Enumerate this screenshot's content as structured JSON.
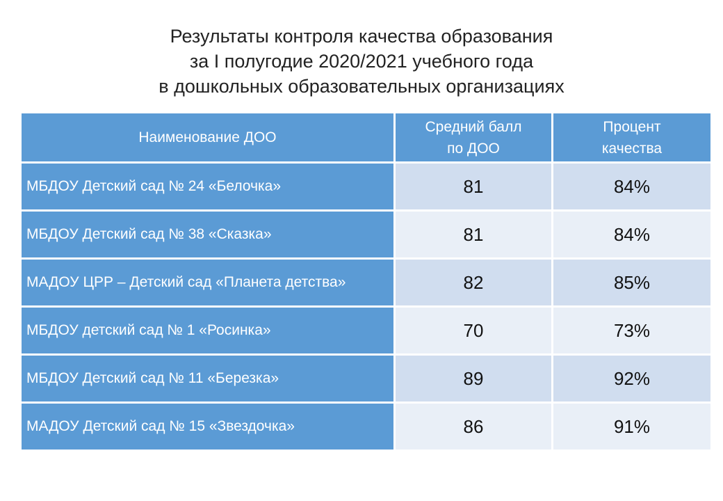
{
  "title": {
    "line1": "Результаты контроля качества образования",
    "line2": "за I полугодие 2020/2021 учебного года",
    "line3": "в дошкольных образовательных организациях"
  },
  "table": {
    "headers": {
      "name": "Наименование ДОО",
      "avg_line1": "Средний балл",
      "avg_line2": "по ДОО",
      "pct_line1": "Процент",
      "pct_line2": "качества"
    },
    "rows": [
      {
        "name": "МБДОУ Детский сад № 24 «Белочка»",
        "avg": "81",
        "pct": "84%"
      },
      {
        "name": "МБДОУ Детский сад № 38 «Сказка»",
        "avg": "81",
        "pct": "84%"
      },
      {
        "name": "МАДОУ ЦРР – Детский сад «Планета детства»",
        "avg": "82",
        "pct": "85%"
      },
      {
        "name": "МБДОУ детский сад № 1 «Росинка»",
        "avg": "70",
        "pct": "73%"
      },
      {
        "name": "МБДОУ Детский сад № 11 «Березка»",
        "avg": "89",
        "pct": "92%"
      },
      {
        "name": "МАДОУ Детский сад № 15 «Звездочка»",
        "avg": "86",
        "pct": "91%"
      }
    ]
  },
  "colors": {
    "header_bg": "#5b9bd5",
    "row_odd_bg": "#d0ddef",
    "row_even_bg": "#e9eff7"
  }
}
